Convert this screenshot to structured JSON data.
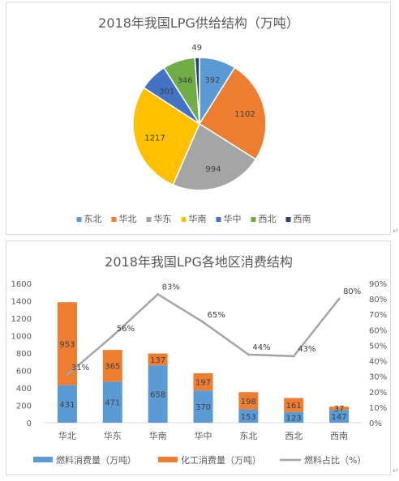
{
  "chart_data": [
    {
      "type": "pie",
      "title": "2018年我国LPG供给结构（万吨）",
      "categories": [
        "东北",
        "华北",
        "华东",
        "华南",
        "华中",
        "西北",
        "西南"
      ],
      "values": [
        392,
        1102,
        994,
        1217,
        301,
        346,
        49
      ],
      "colors": [
        "#5B9BD5",
        "#ED7D31",
        "#A5A5A5",
        "#FFC000",
        "#4472C4",
        "#70AD47",
        "#264478"
      ],
      "legend": "bottom"
    },
    {
      "type": "bar",
      "stacked": true,
      "title": "2018年我国LPG各地区消费结构",
      "categories": [
        "华北",
        "华东",
        "华南",
        "华中",
        "东北",
        "西北",
        "西南"
      ],
      "series": [
        {
          "name": "燃料消费量（万吨）",
          "values": [
            431,
            471,
            658,
            370,
            153,
            123,
            147
          ],
          "color": "#5B9BD5"
        },
        {
          "name": "化工消费量（万吨）",
          "values": [
            953,
            365,
            137,
            197,
            198,
            161,
            37
          ],
          "color": "#ED7D31"
        }
      ],
      "line_series": {
        "name": "燃料占比（%）",
        "values": [
          31,
          56,
          83,
          65,
          44,
          43,
          80
        ],
        "labels": [
          "31%",
          "56%",
          "83%",
          "65%",
          "44%",
          "43%",
          "80%"
        ],
        "color": "#A5A5A5",
        "axis": "right"
      },
      "ylim": [
        0,
        1600
      ],
      "yticks": [
        "0",
        "200",
        "400",
        "600",
        "800",
        "1000",
        "1200",
        "1400",
        "1600"
      ],
      "y2lim": [
        0,
        90
      ],
      "y2ticks": [
        "0%",
        "10%",
        "20%",
        "30%",
        "40%",
        "50%",
        "60%",
        "70%",
        "80%",
        "90%"
      ],
      "legend": "bottom",
      "grid": false
    }
  ],
  "page": {
    "edge_marks": [
      "↵",
      "↵"
    ]
  }
}
